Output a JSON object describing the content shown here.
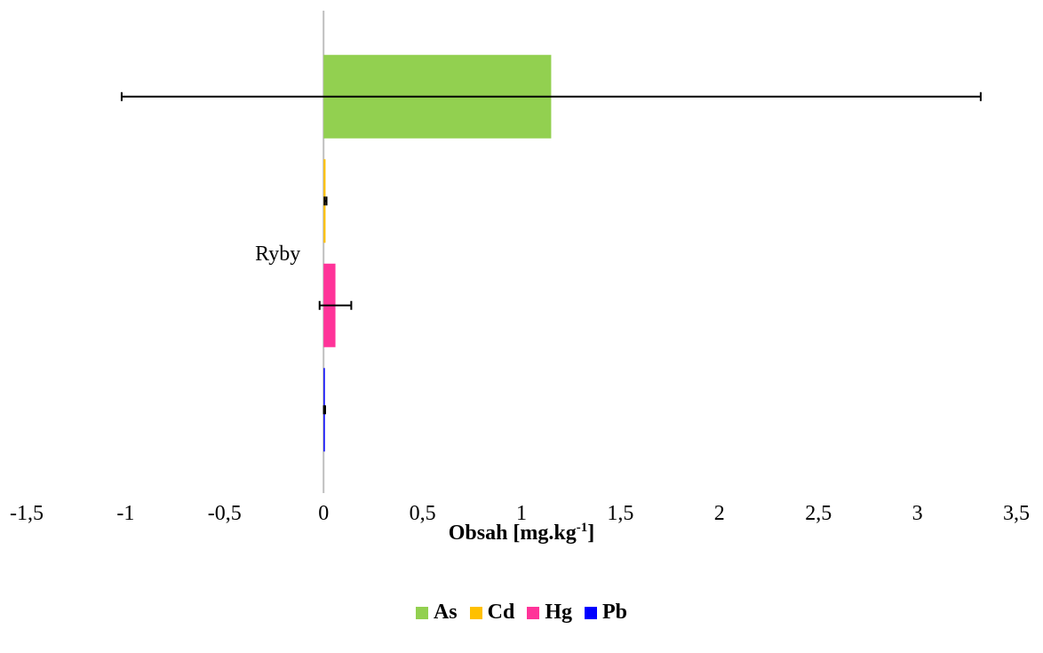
{
  "chart_data": {
    "type": "bar",
    "orientation": "horizontal",
    "categories": [
      "Ryby"
    ],
    "xlim": [
      -1.5,
      3.5
    ],
    "x_ticks": [
      "-1,5",
      "-1",
      "-0,5",
      "0",
      "0,5",
      "1",
      "1,5",
      "2",
      "2,5",
      "3",
      "3,5"
    ],
    "x_tick_values": [
      -1.5,
      -1,
      -0.5,
      0,
      0.5,
      1,
      1.5,
      2,
      2.5,
      3,
      3.5
    ],
    "xlabel_main": "Obsah [mg.kg",
    "xlabel_sup": "-1",
    "xlabel_end": "]",
    "legend_position": "bottom",
    "grid": false,
    "series": [
      {
        "name": "As",
        "color": "#92d050",
        "value": 1.15,
        "error": 2.17
      },
      {
        "name": "Cd",
        "color": "#ffc000",
        "value": 0.01,
        "error": 0.005
      },
      {
        "name": "Hg",
        "color": "#ff3399",
        "value": 0.06,
        "error": 0.08
      },
      {
        "name": "Pb",
        "color": "#0000ff",
        "value": 0.005,
        "error": 0.003
      }
    ]
  }
}
